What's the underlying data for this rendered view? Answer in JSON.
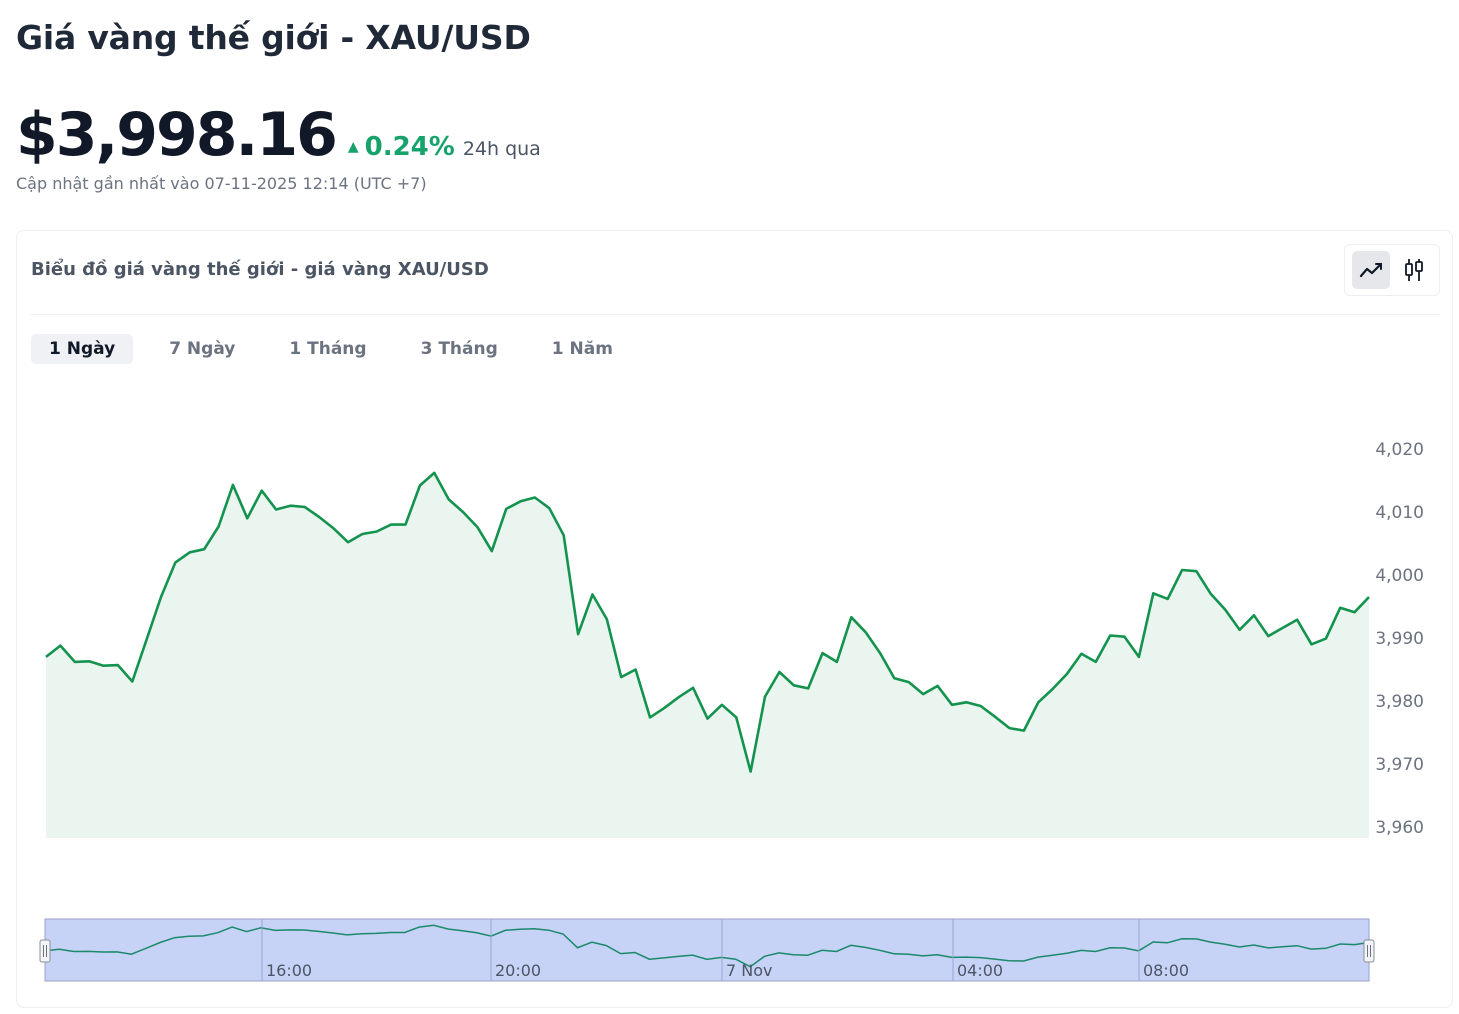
{
  "header": {
    "title": "Giá vàng thế giới - XAU/USD",
    "price": "$3,998.16",
    "change_pct": "0.24%",
    "change_period": "24h qua",
    "updated": "Cập nhật gần nhất vào 07-11-2025 12:14 (UTC +7)"
  },
  "card": {
    "title": "Biểu đồ giá vàng thế giới - giá vàng XAU/USD",
    "chart_types": [
      {
        "name": "line",
        "icon": "line-chart-icon",
        "active": true
      },
      {
        "name": "candle",
        "icon": "candlestick-icon",
        "active": false
      }
    ],
    "tabs": [
      {
        "label": "1 Ngày",
        "active": true
      },
      {
        "label": "7 Ngày",
        "active": false
      },
      {
        "label": "1 Tháng",
        "active": false
      },
      {
        "label": "3 Tháng",
        "active": false
      },
      {
        "label": "1 Năm",
        "active": false
      }
    ]
  },
  "colors": {
    "line": "#14934f",
    "area": "#eaf5ef",
    "positive": "#16a36b",
    "navigator_fill": "#c7d2f7",
    "navigator_line": "#1a8a6a"
  },
  "chart_data": {
    "type": "area",
    "title": "",
    "xlabel": "",
    "ylabel": "",
    "ylim": [
      3960,
      4020
    ],
    "y_ticks": [
      "4,020",
      "4,010",
      "4,000",
      "3,990",
      "3,980",
      "3,970",
      "3,960"
    ],
    "navigator_ticks": [
      "16:00",
      "20:00",
      "7 Nov",
      "04:00",
      "08:00"
    ],
    "series": [
      {
        "values": [
          3987.0,
          3988.8,
          3986.2,
          3986.3,
          3985.6,
          3985.7,
          3983.1,
          3989.8,
          3996.5,
          4002.0,
          4003.6,
          4004.1,
          4007.7,
          4014.3,
          4009.0,
          4013.4,
          4010.4,
          4011.0,
          4010.8,
          4009.2,
          4007.4,
          4005.2,
          4006.5,
          4006.9,
          4008.0,
          4008.0,
          4014.2,
          4016.2,
          4012.0,
          4010.0,
          4007.6,
          4003.8,
          4010.5,
          4011.7,
          4012.3,
          4010.6,
          4006.3,
          3990.6,
          3996.9,
          3993.0,
          3983.8,
          3985.0,
          3977.4,
          3978.9,
          3980.6,
          3982.1,
          3977.2,
          3979.4,
          3977.4,
          3968.8,
          3980.7,
          3984.6,
          3982.5,
          3982.0,
          3987.6,
          3986.2,
          3993.3,
          3990.9,
          3987.6,
          3983.6,
          3983.0,
          3981.1,
          3982.4,
          3979.4,
          3979.8,
          3979.2,
          3977.5,
          3975.7,
          3975.3,
          3979.8,
          3981.9,
          3984.3,
          3987.5,
          3986.2,
          3990.4,
          3990.2,
          3987.0,
          3997.1,
          3996.2,
          4000.8,
          4000.6,
          3997.0,
          3994.5,
          3991.3,
          3993.6,
          3990.3,
          3991.6,
          3992.9,
          3989.0,
          3989.9,
          3994.8,
          3994.1,
          3996.5
        ]
      }
    ]
  }
}
